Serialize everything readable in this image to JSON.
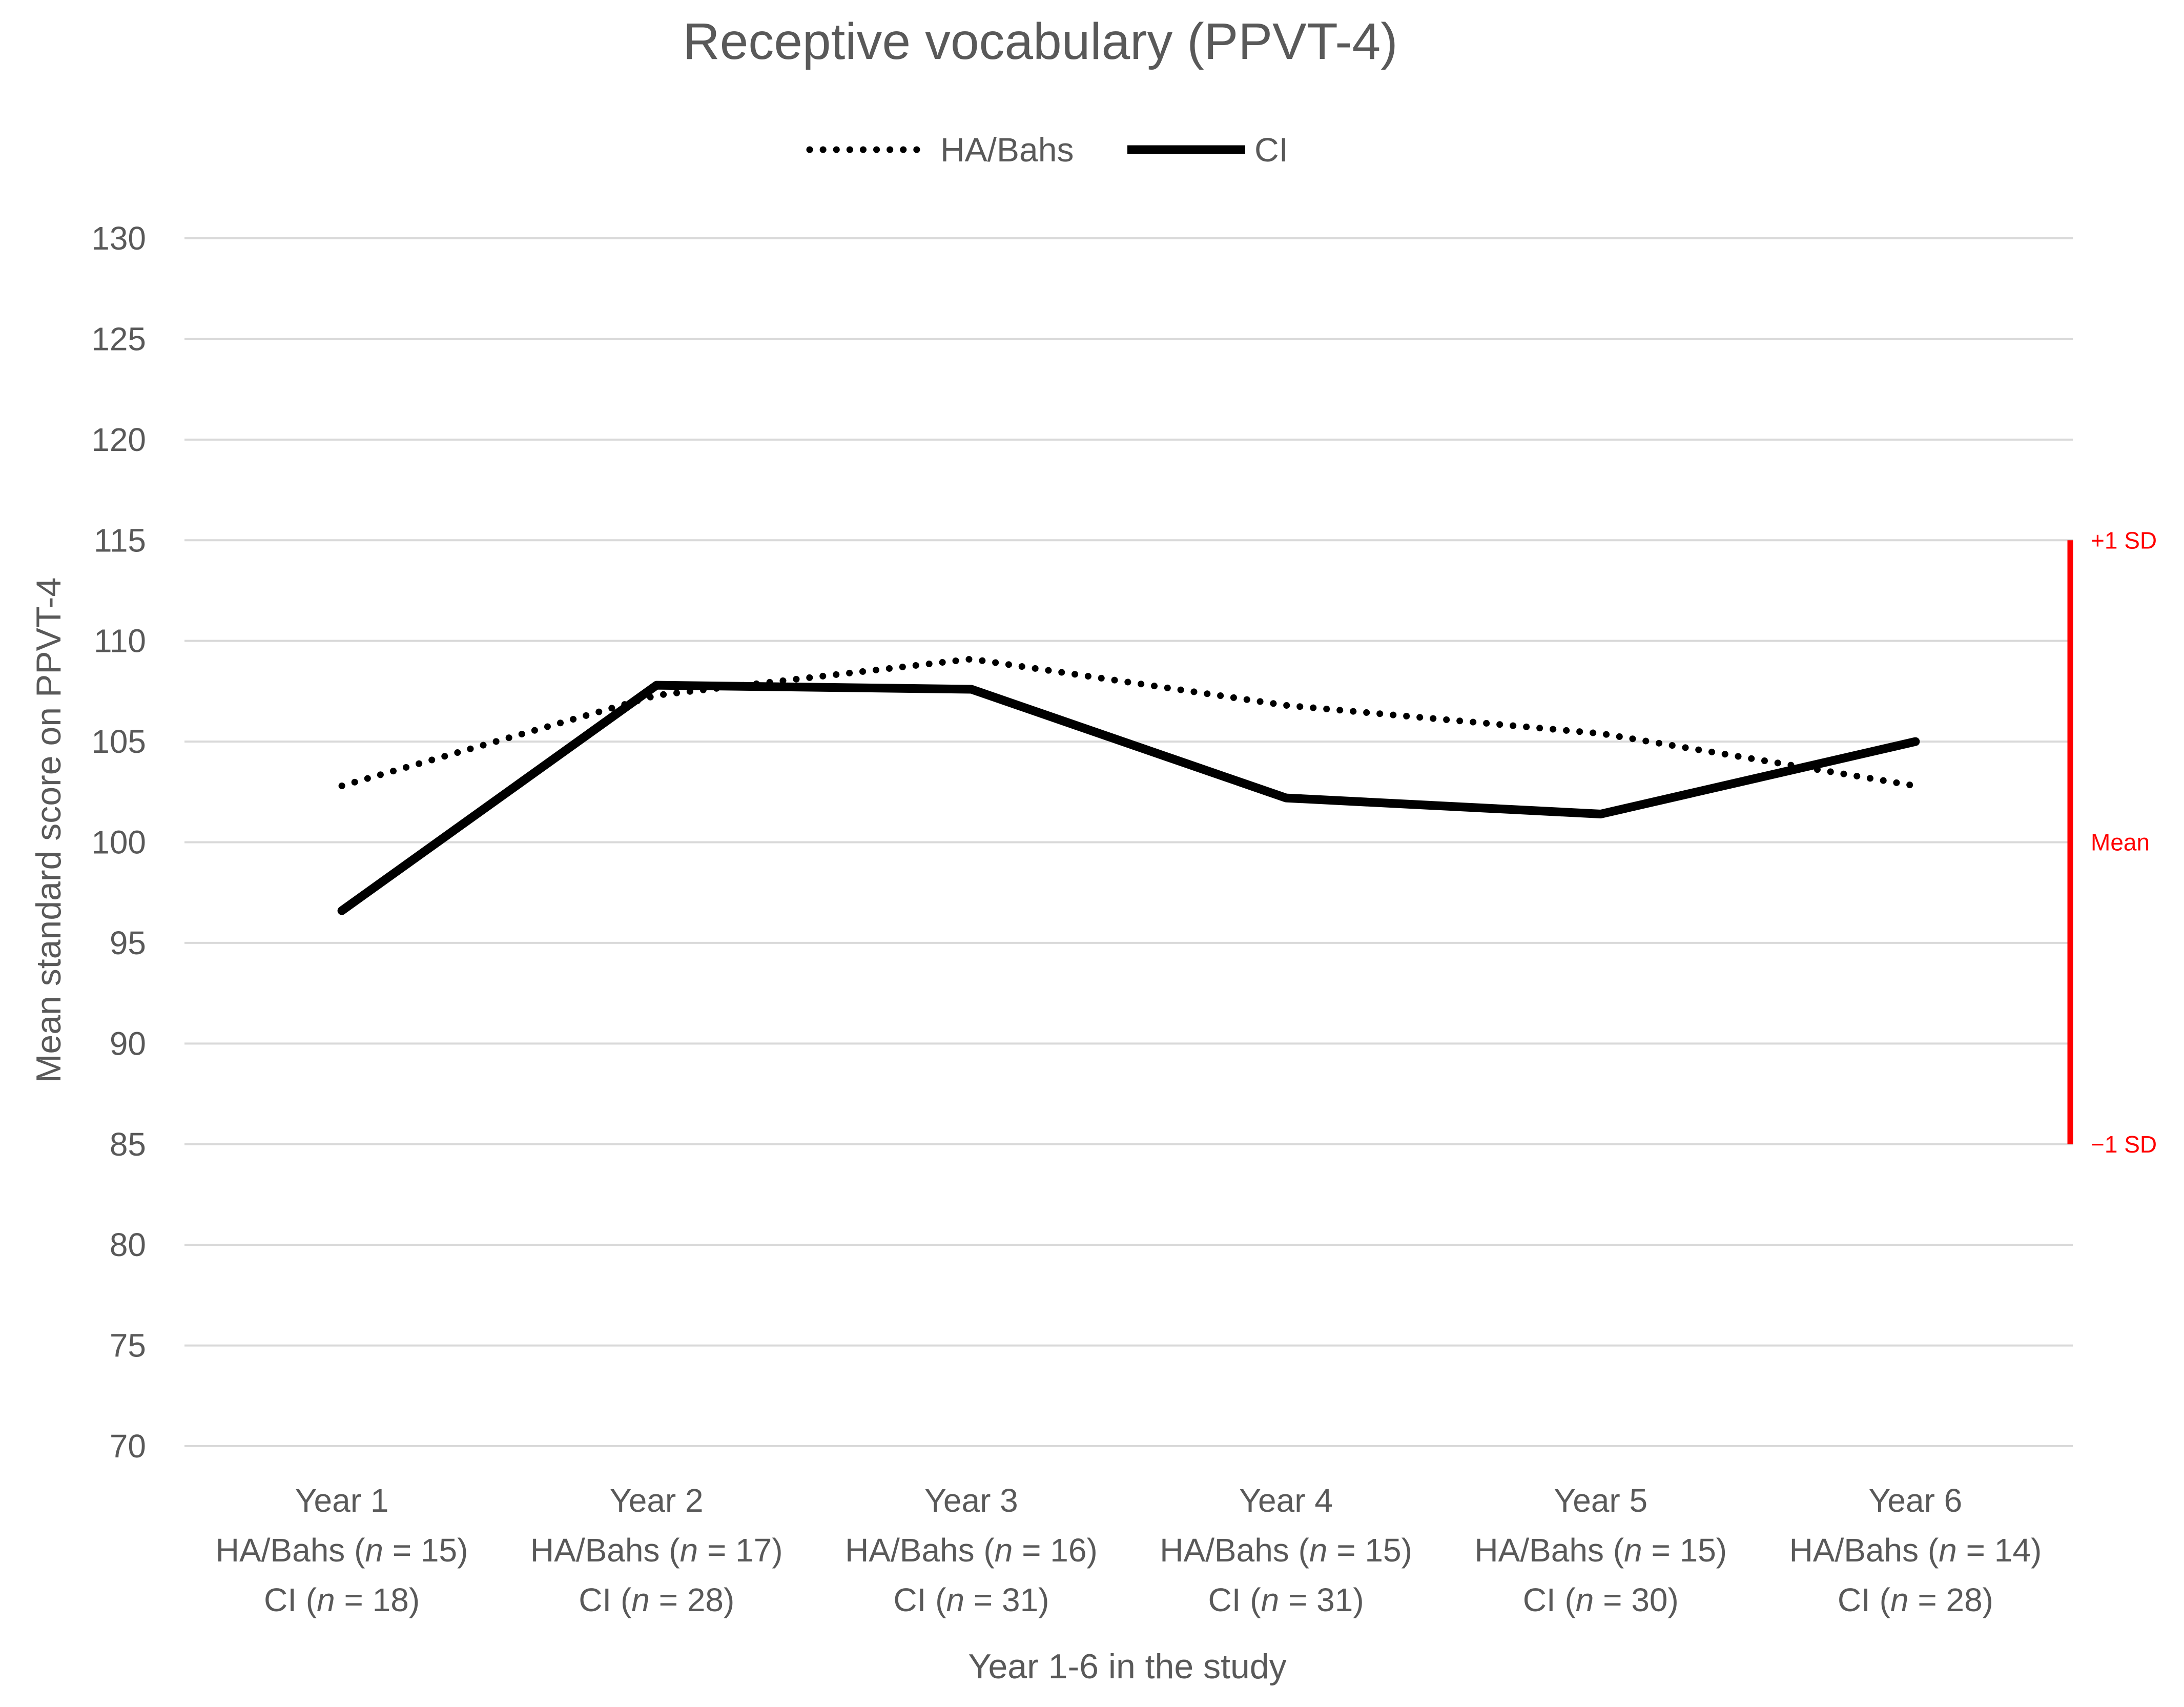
{
  "chart_data": {
    "type": "line",
    "title": "Receptive vocabulary (PPVT-4)",
    "xlabel": "Year 1-6 in the study",
    "ylabel": "Mean standard score on PPVT-4",
    "ylim": [
      70,
      130
    ],
    "ystep": 5,
    "yticks": [
      "130",
      "125",
      "120",
      "115",
      "110",
      "105",
      "100",
      "95",
      "90",
      "85",
      "80",
      "75",
      "70"
    ],
    "grid": true,
    "legend_position": "top-center",
    "categories": [
      {
        "year": "Year 1",
        "ha_label": "HA/Bahs",
        "ha_n": "15",
        "ci_label": "CI",
        "ci_n": "18"
      },
      {
        "year": "Year 2",
        "ha_label": "HA/Bahs",
        "ha_n": "17",
        "ci_label": "CI",
        "ci_n": "28"
      },
      {
        "year": "Year 3",
        "ha_label": "HA/Bahs",
        "ha_n": "16",
        "ci_label": "CI",
        "ci_n": "31"
      },
      {
        "year": "Year 4",
        "ha_label": "HA/Bahs",
        "ha_n": "15",
        "ci_label": "CI",
        "ci_n": "31"
      },
      {
        "year": "Year 5",
        "ha_label": "HA/Bahs",
        "ha_n": "15",
        "ci_label": "CI",
        "ci_n": "30"
      },
      {
        "year": "Year 6",
        "ha_label": "HA/Bahs",
        "ha_n": "14",
        "ci_label": "CI",
        "ci_n": "28"
      }
    ],
    "series": [
      {
        "name": "HA/Bahs",
        "style": "dotted",
        "color": "#000000",
        "values": [
          102.8,
          107.3,
          109.1,
          106.8,
          105.4,
          102.8
        ]
      },
      {
        "name": "CI",
        "style": "solid",
        "color": "#000000",
        "values": [
          96.6,
          107.8,
          107.6,
          102.2,
          101.4,
          105.0
        ]
      }
    ],
    "reference": {
      "color": "#ff0000",
      "upper": {
        "value": 115,
        "label": "+1 SD"
      },
      "mid": {
        "value": 100,
        "label": "Mean"
      },
      "lower": {
        "value": 85,
        "label": "−1 SD"
      }
    }
  }
}
